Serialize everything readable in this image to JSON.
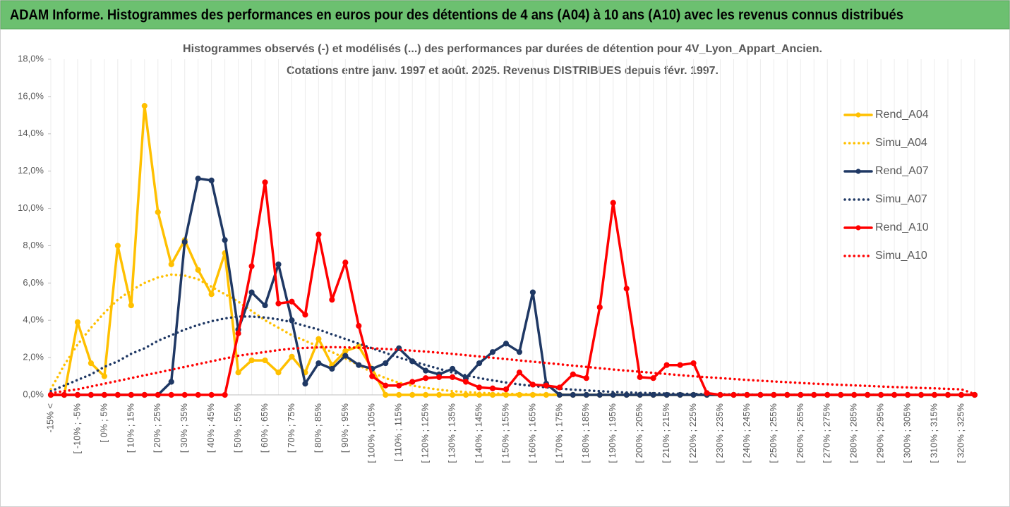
{
  "chart_data": {
    "type": "line",
    "title": "ADAM Informe. Histogrammes des performances en euros pour des détentions de 4 ans (A04) à 10 ans (A10) avec les revenus connus distribués",
    "subtitle": [
      "Histogrammes observés (-)  et modélisés (...) des performances par durées de détention pour 4V_Lyon_Appart_Ancien.",
      "Cotations entre janv. 1997 et août. 2025. Revenus DISTRIBUES depuis févr. 1997."
    ],
    "categories": [
      "-15% <",
      null,
      "[ -10% ; -5%",
      null,
      "[ 0% ; 5%",
      null,
      "[ 10% ; 15%",
      null,
      "[ 20% ; 25%",
      null,
      "[ 30% ; 35%",
      null,
      "[ 40% ; 45%",
      null,
      "[ 50% ; 55%",
      null,
      "[ 60% ; 65%",
      null,
      "[ 70% ; 75%",
      null,
      "[ 80% ; 85%",
      null,
      "[ 90% ; 95%",
      null,
      "[ 100% ; 105%",
      null,
      "[ 110% ; 115%",
      null,
      "[ 120% ; 125%",
      null,
      "[ 130% ; 135%",
      null,
      "[ 140% ; 145%",
      null,
      "[ 150% ; 155%",
      null,
      "[ 160% ; 165%",
      null,
      "[ 170% ; 175%",
      null,
      "[ 180% ; 185%",
      null,
      "[ 190% ; 195%",
      null,
      "[ 200% ; 205%",
      null,
      "[ 210% ; 215%",
      null,
      "[ 220% ; 225%",
      null,
      "[ 230% ; 235%",
      null,
      "[ 240% ; 245%",
      null,
      "[ 250% ; 255%",
      null,
      "[ 260% ; 265%",
      null,
      "[ 270% ; 275%",
      null,
      "[ 280% ; 285%",
      null,
      "[ 290% ; 295%",
      null,
      "[ 300% ; 305%",
      null,
      "[ 310% ; 315%",
      null,
      "[ 320% ; 325%",
      null
    ],
    "series": [
      {
        "name": "Rend_A04",
        "color": "#FFC000",
        "dash": "solid",
        "marker": true,
        "values": [
          0,
          0,
          3.9,
          1.7,
          1.0,
          8.0,
          4.8,
          15.5,
          9.8,
          7.0,
          8.3,
          6.7,
          5.4,
          7.6,
          1.2,
          1.85,
          1.85,
          1.2,
          2.05,
          1.2,
          3.0,
          1.6,
          2.35,
          2.6,
          1.4,
          0,
          0,
          0,
          0,
          0,
          0,
          0,
          0,
          0,
          0,
          0,
          0,
          0,
          0,
          0,
          0,
          0,
          0,
          0,
          0,
          0,
          0,
          0,
          0,
          0,
          0,
          0,
          0,
          0,
          0,
          0,
          0,
          0,
          0,
          0,
          0,
          0,
          0,
          0,
          0,
          0,
          0,
          0,
          0,
          0
        ]
      },
      {
        "name": "Simu_A04",
        "color": "#FFC000",
        "dash": "dotted",
        "marker": false,
        "values": [
          0.3,
          1.6,
          2.7,
          3.6,
          4.4,
          5.1,
          5.6,
          6.0,
          6.3,
          6.45,
          6.4,
          6.2,
          5.8,
          5.4,
          5.0,
          4.5,
          4.0,
          3.6,
          3.2,
          2.9,
          2.6,
          2.3,
          1.95,
          1.6,
          1.2,
          0.9,
          0.65,
          0.5,
          0.38,
          0.28,
          0.2,
          0.15,
          0.11,
          0.08,
          0.06,
          0.04,
          0.03,
          0.02,
          0.01,
          0,
          0,
          0,
          0,
          0,
          0,
          0,
          0,
          0,
          0,
          0,
          0,
          0,
          0,
          0,
          0,
          0,
          0,
          0,
          0,
          0,
          0,
          0,
          0,
          0,
          0,
          0,
          0,
          0,
          0,
          0
        ]
      },
      {
        "name": "Rend_A07",
        "color": "#1F3864",
        "dash": "solid",
        "marker": true,
        "values": [
          0,
          0,
          0,
          0,
          0,
          0,
          0,
          0,
          0,
          0.7,
          8.2,
          11.6,
          11.5,
          8.3,
          3.5,
          5.5,
          4.8,
          7.0,
          4.0,
          0.6,
          1.7,
          1.4,
          2.1,
          1.6,
          1.4,
          1.7,
          2.5,
          1.8,
          1.3,
          1.1,
          1.4,
          0.9,
          1.7,
          2.3,
          2.75,
          2.3,
          5.5,
          0.6,
          0,
          0,
          0,
          0,
          0,
          0,
          0,
          0,
          0,
          0,
          0,
          0,
          0,
          0,
          0,
          0,
          0,
          0,
          0,
          0,
          0,
          0,
          0,
          0,
          0,
          0,
          0,
          0,
          0,
          0,
          0,
          0
        ]
      },
      {
        "name": "Simu_A07",
        "color": "#1F3864",
        "dash": "dotted",
        "marker": false,
        "values": [
          0.2,
          0.5,
          0.8,
          1.1,
          1.5,
          1.8,
          2.2,
          2.5,
          2.9,
          3.2,
          3.5,
          3.75,
          3.95,
          4.1,
          4.2,
          4.2,
          4.15,
          4.05,
          3.9,
          3.7,
          3.5,
          3.25,
          3.0,
          2.75,
          2.5,
          2.25,
          2.0,
          1.8,
          1.6,
          1.4,
          1.2,
          1.05,
          0.9,
          0.78,
          0.66,
          0.56,
          0.48,
          0.4,
          0.34,
          0.28,
          0.24,
          0.2,
          0.16,
          0.13,
          0.11,
          0.09,
          0.07,
          0.06,
          0.05,
          0.04,
          0.03,
          0.03,
          0.02,
          0.01,
          0.01,
          0.01,
          0.01,
          0.01,
          0.01,
          0.01,
          0.01,
          0.01,
          0.01,
          0.01,
          0.01,
          0.01,
          0.01,
          0.01,
          0.01,
          0.01
        ]
      },
      {
        "name": "Rend_A10",
        "color": "#FF0000",
        "dash": "solid",
        "marker": true,
        "values": [
          0,
          0,
          0,
          0,
          0,
          0,
          0,
          0,
          0,
          0,
          0,
          0,
          0,
          0,
          3.3,
          6.9,
          11.4,
          4.9,
          5.0,
          4.3,
          8.6,
          5.1,
          7.1,
          3.7,
          1.0,
          0.5,
          0.5,
          0.7,
          0.9,
          0.95,
          0.95,
          0.7,
          0.4,
          0.35,
          0.3,
          1.2,
          0.55,
          0.5,
          0.4,
          1.1,
          0.9,
          4.7,
          10.3,
          5.7,
          0.95,
          0.9,
          1.6,
          1.6,
          1.7,
          0.1,
          0,
          0,
          0,
          0,
          0,
          0,
          0,
          0,
          0,
          0,
          0,
          0,
          0,
          0,
          0,
          0,
          0,
          0,
          0,
          0
        ]
      },
      {
        "name": "Simu_A10",
        "color": "#FF0000",
        "dash": "dotted",
        "marker": false,
        "values": [
          0.1,
          0.2,
          0.3,
          0.45,
          0.6,
          0.75,
          0.9,
          1.05,
          1.2,
          1.35,
          1.5,
          1.65,
          1.8,
          1.95,
          2.1,
          2.2,
          2.3,
          2.4,
          2.48,
          2.52,
          2.55,
          2.56,
          2.55,
          2.53,
          2.5,
          2.46,
          2.42,
          2.37,
          2.32,
          2.26,
          2.2,
          2.13,
          2.06,
          1.99,
          1.92,
          1.85,
          1.78,
          1.71,
          1.64,
          1.57,
          1.5,
          1.43,
          1.36,
          1.3,
          1.24,
          1.18,
          1.12,
          1.06,
          1.0,
          0.95,
          0.9,
          0.85,
          0.8,
          0.76,
          0.72,
          0.68,
          0.64,
          0.6,
          0.57,
          0.54,
          0.51,
          0.48,
          0.45,
          0.42,
          0.4,
          0.37,
          0.35,
          0.32,
          0.3,
          0.05
        ]
      }
    ],
    "ylim": [
      0,
      18
    ],
    "yticks": [
      {
        "value": 0,
        "label": "0,0%"
      },
      {
        "value": 2,
        "label": "2,0%"
      },
      {
        "value": 4,
        "label": "4,0%"
      },
      {
        "value": 6,
        "label": "6,0%"
      },
      {
        "value": 8,
        "label": "8,0%"
      },
      {
        "value": 10,
        "label": "10,0%"
      },
      {
        "value": 12,
        "label": "12,0%"
      },
      {
        "value": 14,
        "label": "14,0%"
      },
      {
        "value": 16,
        "label": "16,0%"
      },
      {
        "value": 18,
        "label": "18,0%"
      }
    ],
    "grid": "x",
    "legend": "right"
  }
}
